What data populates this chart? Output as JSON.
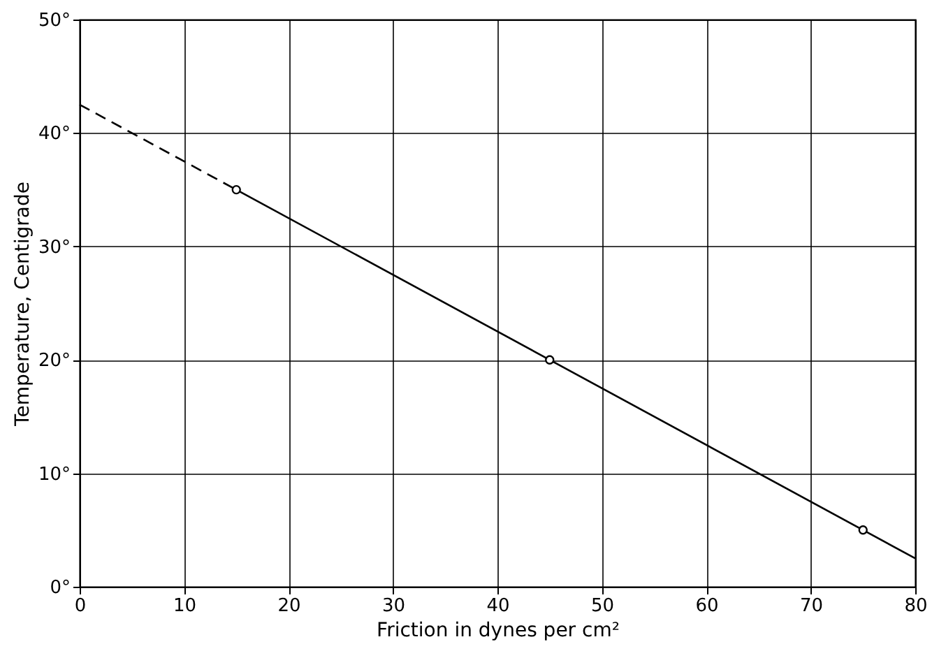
{
  "chart_data": {
    "type": "line",
    "xlabel": "Friction in dynes per cm²",
    "ylabel": "Temperature, Centigrade",
    "xlim": [
      0,
      80
    ],
    "xticks": [
      0,
      10,
      20,
      30,
      40,
      50,
      60,
      70,
      80
    ],
    "ylim": [
      0,
      50
    ],
    "yticks": [
      {
        "value": 0,
        "label": "0°"
      },
      {
        "value": 10,
        "label": "10°"
      },
      {
        "value": 20,
        "label": "20°"
      },
      {
        "value": 30,
        "label": "30°"
      },
      {
        "value": 40,
        "label": "40°"
      },
      {
        "value": 50,
        "label": "50°"
      }
    ],
    "grid": true,
    "series": [
      {
        "x": [
          0,
          15
        ],
        "values": [
          42.5,
          35
        ],
        "color": "#000000",
        "line_style": "dashed"
      },
      {
        "x": [
          15,
          80
        ],
        "values": [
          35,
          2.5
        ],
        "color": "#000000",
        "line_style": "solid"
      },
      {
        "type": "scatter",
        "x": [
          15,
          45,
          75
        ],
        "values": [
          35,
          20,
          5
        ],
        "color": "#000000",
        "marker": "circle"
      }
    ]
  }
}
